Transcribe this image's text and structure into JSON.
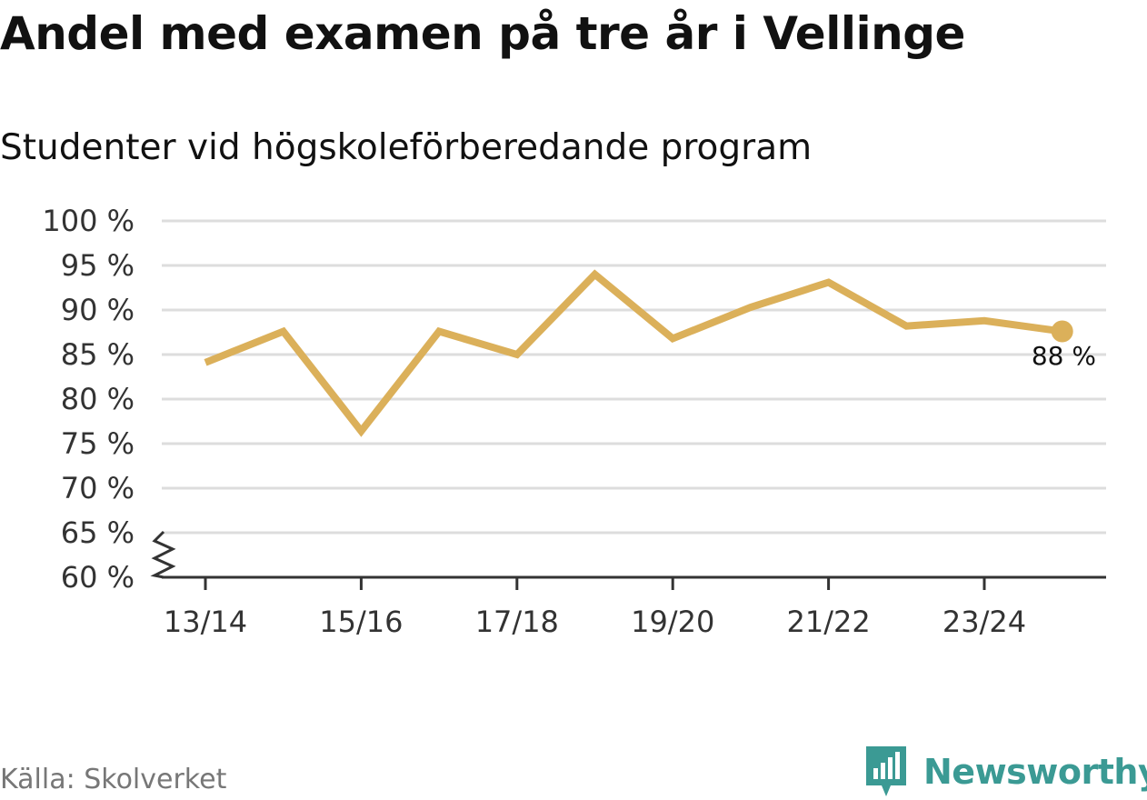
{
  "title": "Andel med examen på tre år i Vellinge",
  "subtitle": "Studenter vid högskoleförberedande program",
  "source": "Källa: Skolverket",
  "brand": {
    "name": "Newsworthy",
    "icon": "newsworthy-logo-icon",
    "color": "#3b9a94"
  },
  "colors": {
    "line": "#dbb05a",
    "grid": "#dddddd",
    "axis": "#333333"
  },
  "chart_data": {
    "type": "line",
    "x": [
      "13/14",
      "14/15",
      "15/16",
      "16/17",
      "17/18",
      "18/19",
      "19/20",
      "20/21",
      "21/22",
      "22/23",
      "23/24",
      "24/25"
    ],
    "values": [
      84.1,
      87.6,
      76.4,
      87.6,
      85.0,
      94.0,
      86.8,
      90.3,
      93.1,
      88.2,
      88.8,
      87.6
    ],
    "x_tick_labels": [
      "13/14",
      "15/16",
      "17/18",
      "19/20",
      "21/22",
      "23/24"
    ],
    "y_tick_labels": [
      "60 %",
      "65 %",
      "70 %",
      "75 %",
      "80 %",
      "85 %",
      "90 %",
      "95 %",
      "100 %"
    ],
    "y_ticks": [
      60,
      65,
      70,
      75,
      80,
      85,
      90,
      95,
      100
    ],
    "ylim": [
      60,
      100
    ],
    "y_axis_break": true,
    "grid": true,
    "end_label": "88 %"
  }
}
